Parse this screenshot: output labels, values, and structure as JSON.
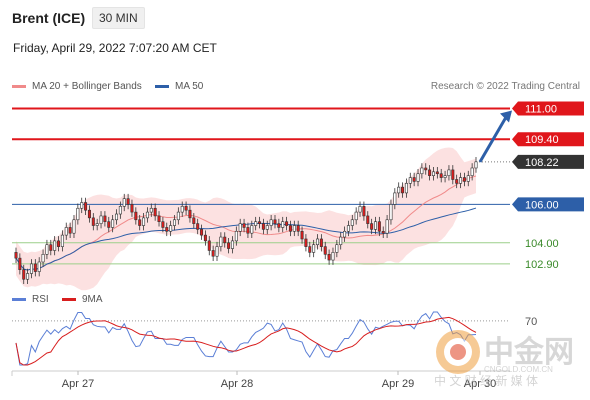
{
  "header": {
    "instrument": "Brent (ICE)",
    "interval": "30 MIN",
    "datetime": "Friday, April 29, 2022 7:07:20 AM CET"
  },
  "legend_main": [
    {
      "label": "MA 20 + Bollinger Bands",
      "color": "#f08a8a"
    },
    {
      "label": "MA 50",
      "color": "#2d5fa8"
    }
  ],
  "legend_rsi": [
    {
      "label": "RSI",
      "color": "#5b7fd6"
    },
    {
      "label": "9MA",
      "color": "#d81e1e"
    }
  ],
  "credit": "Research © 2022 Trading Central",
  "watermark": {
    "brand": "中金网",
    "site": "CNGOLD.COM.CN",
    "tagline": "中 文 财 经 新 媒 体"
  },
  "colors": {
    "resistance": "#e0161b",
    "pivot": "#2d5fa8",
    "support": "#9ccf8a",
    "current": "#333333",
    "bull": "#ffffff",
    "bear": "#d81e1e",
    "band": "#fbd9d9"
  },
  "chart_data": {
    "type": "candlestick",
    "y_range": [
      101.8,
      111.6
    ],
    "x_ticks": [
      "Apr 27",
      "Apr 28",
      "Apr 29",
      "Apr 30"
    ],
    "current_price": "108.22",
    "levels": [
      {
        "value": 111.0,
        "label": "111.00",
        "kind": "resistance"
      },
      {
        "value": 109.4,
        "label": "109.40",
        "kind": "resistance"
      },
      {
        "value": 106.0,
        "label": "106.00",
        "kind": "pivot"
      },
      {
        "value": 104.0,
        "label": "104.00",
        "kind": "support"
      },
      {
        "value": 102.9,
        "label": "102.90",
        "kind": "support"
      }
    ],
    "close": [
      103.2,
      102.6,
      102.1,
      102.4,
      102.9,
      102.5,
      103.0,
      103.4,
      103.9,
      103.6,
      104.1,
      103.8,
      104.4,
      104.8,
      104.5,
      105.2,
      105.8,
      106.1,
      105.7,
      105.3,
      104.9,
      105.0,
      105.4,
      105.1,
      104.8,
      105.2,
      105.5,
      105.9,
      106.3,
      106.0,
      105.6,
      105.2,
      104.9,
      105.3,
      105.6,
      105.8,
      105.4,
      105.1,
      104.8,
      104.6,
      104.9,
      105.2,
      105.6,
      105.9,
      105.7,
      105.3,
      105.0,
      104.7,
      104.4,
      104.1,
      103.6,
      103.3,
      103.8,
      104.3,
      104.0,
      103.7,
      104.1,
      104.6,
      105.0,
      104.8,
      104.5,
      104.9,
      105.1,
      105.0,
      104.7,
      104.9,
      105.2,
      105.0,
      104.8,
      105.1,
      104.9,
      104.6,
      104.9,
      104.6,
      104.2,
      103.8,
      103.5,
      103.9,
      104.2,
      103.8,
      103.4,
      103.1,
      103.5,
      103.9,
      104.3,
      104.6,
      104.9,
      105.2,
      105.6,
      105.9,
      105.4,
      105.0,
      104.7,
      105.1,
      104.6,
      104.5,
      105.2,
      106.0,
      106.6,
      106.9,
      106.6,
      107.1,
      107.4,
      107.2,
      107.6,
      107.9,
      107.8,
      107.5,
      107.7,
      107.6,
      107.4,
      107.5,
      107.8,
      107.3,
      107.1,
      107.4,
      107.2,
      107.5,
      107.9,
      108.22
    ],
    "rsi": {
      "y_range": [
        20,
        80
      ],
      "level": 70,
      "level_label": "70"
    }
  }
}
